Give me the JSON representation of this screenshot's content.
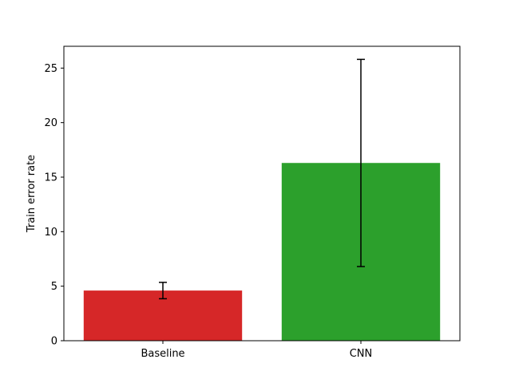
{
  "chart_data": {
    "type": "bar",
    "title": "",
    "xlabel": "",
    "ylabel": "Train error rate",
    "categories": [
      "Baseline",
      "CNN"
    ],
    "values": [
      4.6,
      16.3
    ],
    "errors": [
      0.75,
      9.5
    ],
    "colors": [
      "#d62728",
      "#2ca02c"
    ],
    "ylim": [
      0,
      27
    ],
    "yticks": [
      0,
      5,
      10,
      15,
      20,
      25
    ],
    "grid": false,
    "legend": "none"
  }
}
